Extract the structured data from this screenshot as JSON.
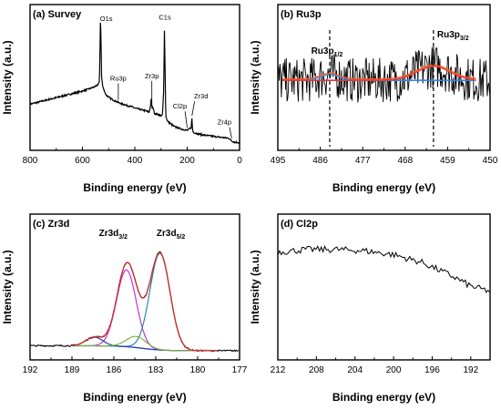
{
  "chart_data": [
    {
      "id": "a",
      "type": "line",
      "panel_label": "(a) Survey",
      "xlabel": "Binding energy (eV)",
      "ylabel": "Intensity (a.u.)",
      "xlim": [
        800,
        0
      ],
      "x_reversed": true,
      "x_ticks": [
        800,
        600,
        400,
        200,
        0
      ],
      "y_ticks_shown": false,
      "line_color": "#000000",
      "series": [
        {
          "x": [
            800,
            760,
            720,
            680,
            640,
            600,
            570,
            545,
            535,
            531,
            529,
            527,
            522,
            510,
            490,
            460,
            430,
            410,
            400,
            380,
            360,
            345,
            340,
            337,
            334,
            331,
            325,
            310,
            295,
            290,
            287,
            284,
            282,
            275,
            250,
            220,
            200,
            185,
            182,
            180,
            178,
            170,
            150,
            120,
            100,
            80,
            60,
            40,
            30,
            20,
            10,
            0
          ],
          "values": [
            0.31,
            0.33,
            0.35,
            0.37,
            0.39,
            0.41,
            0.43,
            0.45,
            0.48,
            1.0,
            0.78,
            0.52,
            0.44,
            0.38,
            0.35,
            0.32,
            0.3,
            0.29,
            0.28,
            0.27,
            0.26,
            0.25,
            0.3,
            0.36,
            0.27,
            0.29,
            0.24,
            0.23,
            0.22,
            0.4,
            0.87,
            0.56,
            0.22,
            0.18,
            0.14,
            0.12,
            0.11,
            0.13,
            0.2,
            0.13,
            0.1,
            0.09,
            0.08,
            0.07,
            0.065,
            0.06,
            0.055,
            0.05,
            0.03,
            0.02,
            0.02,
            0.015
          ]
        }
      ],
      "annotations": [
        {
          "text": "O1s",
          "x": 530
        },
        {
          "text": "C1s",
          "x": 285
        },
        {
          "text": "Zr3p",
          "x": 335
        },
        {
          "text": "Ru3p",
          "x": 463
        },
        {
          "text": "Cl2p",
          "x": 200
        },
        {
          "text": "Zr3d",
          "x": 182
        },
        {
          "text": "Zr4p",
          "x": 30
        }
      ]
    },
    {
      "id": "b",
      "type": "line",
      "panel_label": "(b) Ru3p",
      "xlabel": "Binding energy (eV)",
      "ylabel": "Intensity (a.u.)",
      "xlim": [
        495,
        450
      ],
      "x_reversed": true,
      "x_ticks": [
        495,
        486,
        477,
        468,
        459,
        450
      ],
      "y_ticks_shown": false,
      "peaks": [
        {
          "text_main": "Ru3p",
          "text_sub": "1/2",
          "x": 484.0
        },
        {
          "text_main": "Ru3p",
          "text_sub": "3/2",
          "x": 462.0
        }
      ],
      "fit_range": [
        494,
        453
      ],
      "components": [
        {
          "color": "#8e24aa",
          "center": 462.0,
          "amplitude": 0.0,
          "sigma": 1.0
        },
        {
          "color": "#2196f3",
          "center": 484.0,
          "amplitude": 0.08,
          "sigma": 2.0
        },
        {
          "color": "#e53935",
          "center": 462.0,
          "amplitude": 0.2,
          "sigma": 3.5
        }
      ],
      "fit_color": "#ff5722",
      "baseline_color": "#7b1fa2"
    },
    {
      "id": "c",
      "type": "line",
      "panel_label": "(c) Zr3d",
      "xlabel": "Binding energy (eV)",
      "ylabel": "Intensity (a.u.)",
      "xlim": [
        192,
        177
      ],
      "x_reversed": true,
      "x_ticks": [
        192,
        189,
        186,
        183,
        180,
        177
      ],
      "y_ticks_shown": false,
      "peaks": [
        {
          "text_main": "Zr3d",
          "text_sub": "3/2",
          "x": 185.0
        },
        {
          "text_main": "Zr3d",
          "text_sub": "5/2",
          "x": 182.7
        }
      ],
      "fit_range": [
        189,
        178.5
      ],
      "components": [
        {
          "color": "#c533d6",
          "center": 185.1,
          "amplitude": 0.62,
          "sigma": 0.7
        },
        {
          "color": "#2a8a9e",
          "center": 182.7,
          "amplitude": 0.78,
          "sigma": 0.72
        },
        {
          "color": "#1f3fb0",
          "center": 187.4,
          "amplitude": 0.07,
          "sigma": 0.6
        },
        {
          "color": "#7cb342",
          "center": 184.4,
          "amplitude": 0.09,
          "sigma": 0.7
        }
      ],
      "fit_color": "#d32f2f",
      "data_color": "#000000"
    },
    {
      "id": "d",
      "type": "line",
      "panel_label": "(d) Cl2p",
      "xlabel": "Binding energy (eV)",
      "ylabel": "Intensity (a.u.)",
      "xlim": [
        212,
        190
      ],
      "x_reversed": true,
      "x_ticks": [
        212,
        208,
        204,
        200,
        196,
        192
      ],
      "y_ticks_shown": false,
      "series": [
        {
          "x": [
            212,
            209,
            206,
            203,
            200,
            197,
            194,
            192,
            190
          ],
          "values": [
            0.78,
            0.8,
            0.8,
            0.79,
            0.76,
            0.7,
            0.6,
            0.52,
            0.48
          ]
        }
      ]
    }
  ]
}
